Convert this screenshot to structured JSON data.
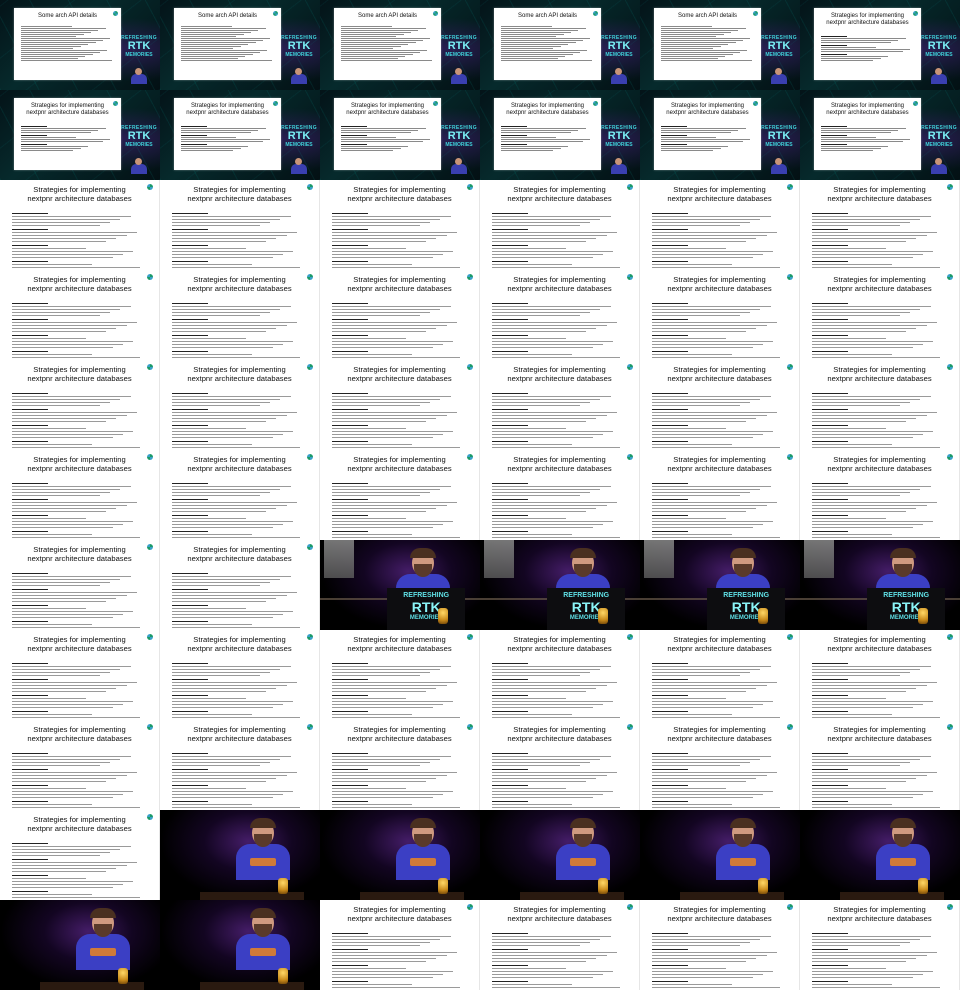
{
  "slides": {
    "api_title": "Some arch API details",
    "strategies_line1": "Strategies for implementing",
    "strategies_line2": "nextpnr architecture databases"
  },
  "logo": {
    "line1": "REFRESHING",
    "line2": "RTK",
    "line3": "MEMORIES"
  },
  "colors": {
    "slide_background": "#ffffff",
    "stage_teal": "#062a2c",
    "stage_purple": "#46207a",
    "shirt_blue": "#3b3fc4",
    "logo_cyan": "#5fe0e6"
  },
  "frames": [
    {
      "type": "stage",
      "slide": "api"
    },
    {
      "type": "stage",
      "slide": "api"
    },
    {
      "type": "stage",
      "slide": "api"
    },
    {
      "type": "stage",
      "slide": "api"
    },
    {
      "type": "stage",
      "slide": "api"
    },
    {
      "type": "stage",
      "slide": "strategies"
    },
    {
      "type": "stage",
      "slide": "strategies"
    },
    {
      "type": "stage",
      "slide": "strategies"
    },
    {
      "type": "stage",
      "slide": "strategies"
    },
    {
      "type": "stage",
      "slide": "strategies"
    },
    {
      "type": "stage",
      "slide": "strategies"
    },
    {
      "type": "stage",
      "slide": "strategies"
    },
    {
      "type": "slide"
    },
    {
      "type": "slide"
    },
    {
      "type": "slide"
    },
    {
      "type": "slide"
    },
    {
      "type": "slide"
    },
    {
      "type": "slide"
    },
    {
      "type": "slide"
    },
    {
      "type": "slide"
    },
    {
      "type": "slide"
    },
    {
      "type": "slide"
    },
    {
      "type": "slide"
    },
    {
      "type": "slide"
    },
    {
      "type": "slide"
    },
    {
      "type": "slide"
    },
    {
      "type": "slide"
    },
    {
      "type": "slide"
    },
    {
      "type": "slide"
    },
    {
      "type": "slide"
    },
    {
      "type": "slide"
    },
    {
      "type": "slide"
    },
    {
      "type": "slide"
    },
    {
      "type": "slide"
    },
    {
      "type": "slide"
    },
    {
      "type": "slide"
    },
    {
      "type": "slide"
    },
    {
      "type": "slide"
    },
    {
      "type": "speaker-podium"
    },
    {
      "type": "speaker-podium"
    },
    {
      "type": "speaker-podium"
    },
    {
      "type": "speaker-podium"
    },
    {
      "type": "slide"
    },
    {
      "type": "slide"
    },
    {
      "type": "slide"
    },
    {
      "type": "slide"
    },
    {
      "type": "slide"
    },
    {
      "type": "slide"
    },
    {
      "type": "slide"
    },
    {
      "type": "slide"
    },
    {
      "type": "slide"
    },
    {
      "type": "slide"
    },
    {
      "type": "slide"
    },
    {
      "type": "slide"
    },
    {
      "type": "slide"
    },
    {
      "type": "speaker"
    },
    {
      "type": "speaker"
    },
    {
      "type": "speaker"
    },
    {
      "type": "speaker"
    },
    {
      "type": "speaker"
    },
    {
      "type": "speaker"
    },
    {
      "type": "speaker"
    },
    {
      "type": "slide"
    },
    {
      "type": "slide"
    },
    {
      "type": "slide"
    },
    {
      "type": "slide"
    }
  ]
}
